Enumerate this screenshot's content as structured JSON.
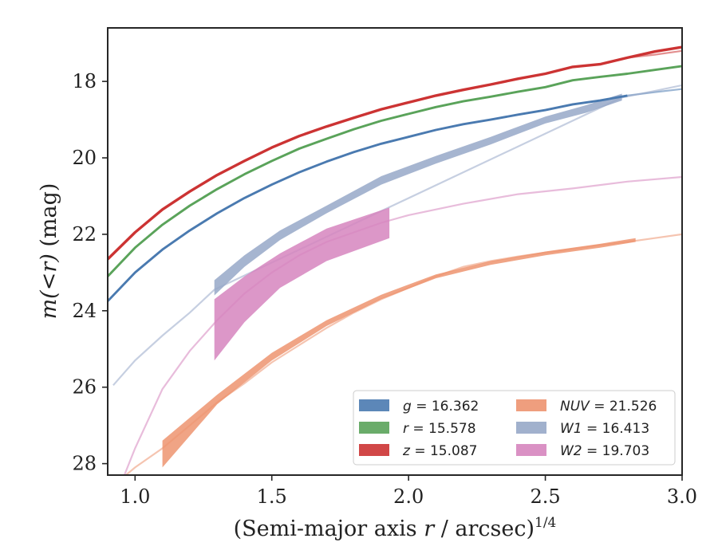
{
  "chart_data": {
    "type": "line",
    "title": "",
    "xlabel": {
      "prefix": "(Semi-major axis ",
      "var": "r",
      "suffix": " / arcsec)",
      "sup": "1/4"
    },
    "ylabel": {
      "prefix": "",
      "var": "m(<r)",
      "suffix": " (mag)"
    },
    "xlim": [
      0.9,
      3.0
    ],
    "ylim": [
      28.3,
      16.6
    ],
    "y_inverted": true,
    "x_ticks": [
      1.0,
      1.5,
      2.0,
      2.5,
      3.0
    ],
    "x_tick_labels": [
      "1.0",
      "1.5",
      "2.0",
      "2.5",
      "3.0"
    ],
    "y_ticks": [
      18,
      20,
      22,
      24,
      26,
      28
    ],
    "y_tick_labels": [
      "18",
      "20",
      "22",
      "24",
      "26",
      "28"
    ],
    "grid": false,
    "legend_placement": "lower-right",
    "series": [
      {
        "name": "g",
        "legend": {
          "var": "g",
          "value": " = 16.362"
        },
        "color": "#4a7ab0",
        "band_width": 0.06,
        "data": [
          [
            0.9,
            23.75
          ],
          [
            1.0,
            23.0
          ],
          [
            1.1,
            22.4
          ],
          [
            1.2,
            21.9
          ],
          [
            1.3,
            21.45
          ],
          [
            1.4,
            21.05
          ],
          [
            1.5,
            20.7
          ],
          [
            1.6,
            20.38
          ],
          [
            1.7,
            20.1
          ],
          [
            1.8,
            19.85
          ],
          [
            1.9,
            19.63
          ],
          [
            2.0,
            19.45
          ],
          [
            2.1,
            19.27
          ],
          [
            2.2,
            19.12
          ],
          [
            2.3,
            19.0
          ],
          [
            2.4,
            18.87
          ],
          [
            2.5,
            18.75
          ],
          [
            2.6,
            18.6
          ],
          [
            2.7,
            18.5
          ],
          [
            2.8,
            18.37
          ]
        ],
        "extrapolated": [
          [
            2.8,
            18.37
          ],
          [
            2.9,
            18.28
          ],
          [
            3.0,
            18.2
          ]
        ]
      },
      {
        "name": "r",
        "legend": {
          "var": "r",
          "value": " = 15.578"
        },
        "color": "#5aa35a",
        "band_width": 0.06,
        "data": [
          [
            0.9,
            23.1
          ],
          [
            1.0,
            22.35
          ],
          [
            1.1,
            21.75
          ],
          [
            1.2,
            21.25
          ],
          [
            1.3,
            20.82
          ],
          [
            1.4,
            20.43
          ],
          [
            1.5,
            20.08
          ],
          [
            1.6,
            19.76
          ],
          [
            1.7,
            19.5
          ],
          [
            1.8,
            19.25
          ],
          [
            1.9,
            19.03
          ],
          [
            2.0,
            18.85
          ],
          [
            2.1,
            18.67
          ],
          [
            2.2,
            18.52
          ],
          [
            2.3,
            18.4
          ],
          [
            2.4,
            18.27
          ],
          [
            2.5,
            18.15
          ],
          [
            2.6,
            17.97
          ],
          [
            2.7,
            17.88
          ],
          [
            2.8,
            17.8
          ],
          [
            2.9,
            17.7
          ],
          [
            3.0,
            17.6
          ]
        ],
        "extrapolated": []
      },
      {
        "name": "z",
        "legend": {
          "var": "z",
          "value": " = 15.087"
        },
        "color": "#cc3333",
        "band_width": 0.07,
        "data": [
          [
            0.9,
            22.65
          ],
          [
            1.0,
            21.95
          ],
          [
            1.1,
            21.35
          ],
          [
            1.2,
            20.88
          ],
          [
            1.3,
            20.45
          ],
          [
            1.4,
            20.08
          ],
          [
            1.5,
            19.73
          ],
          [
            1.6,
            19.43
          ],
          [
            1.7,
            19.18
          ],
          [
            1.8,
            18.95
          ],
          [
            1.9,
            18.73
          ],
          [
            2.0,
            18.55
          ],
          [
            2.1,
            18.37
          ],
          [
            2.2,
            18.22
          ],
          [
            2.3,
            18.08
          ],
          [
            2.4,
            17.93
          ],
          [
            2.5,
            17.8
          ],
          [
            2.6,
            17.62
          ],
          [
            2.7,
            17.55
          ],
          [
            2.8,
            17.38
          ],
          [
            2.9,
            17.22
          ],
          [
            3.0,
            17.1
          ]
        ],
        "extrapolated": [
          [
            2.8,
            17.38
          ],
          [
            2.9,
            17.3
          ],
          [
            3.0,
            17.2
          ]
        ]
      },
      {
        "name": "NUV",
        "legend": {
          "var": "NUV",
          "value": " = 21.526"
        },
        "color": "#ed9470",
        "data_lower": [
          [
            1.1,
            28.1
          ],
          [
            1.3,
            26.45
          ],
          [
            1.5,
            25.3
          ],
          [
            1.7,
            24.4
          ],
          [
            1.9,
            23.7
          ],
          [
            2.1,
            23.15
          ],
          [
            2.3,
            22.8
          ],
          [
            2.5,
            22.55
          ],
          [
            2.7,
            22.35
          ],
          [
            2.83,
            22.2
          ]
        ],
        "data_upper": [
          [
            1.1,
            27.4
          ],
          [
            1.3,
            26.2
          ],
          [
            1.5,
            25.1
          ],
          [
            1.7,
            24.25
          ],
          [
            1.9,
            23.58
          ],
          [
            2.1,
            23.05
          ],
          [
            2.3,
            22.7
          ],
          [
            2.5,
            22.45
          ],
          [
            2.7,
            22.25
          ],
          [
            2.83,
            22.1
          ]
        ],
        "extrapolated": [
          [
            0.95,
            28.4
          ],
          [
            1.0,
            28.1
          ],
          [
            1.1,
            27.6
          ],
          [
            1.2,
            27.0
          ],
          [
            1.3,
            26.4
          ],
          [
            1.4,
            25.9
          ],
          [
            1.5,
            25.35
          ],
          [
            1.6,
            24.9
          ],
          [
            1.7,
            24.45
          ],
          [
            1.8,
            24.05
          ],
          [
            1.9,
            23.7
          ],
          [
            2.0,
            23.4
          ],
          [
            2.1,
            23.1
          ],
          [
            2.2,
            22.85
          ],
          [
            2.3,
            22.7
          ],
          [
            2.4,
            22.58
          ],
          [
            2.5,
            22.48
          ],
          [
            2.6,
            22.38
          ],
          [
            2.7,
            22.28
          ],
          [
            2.8,
            22.2
          ],
          [
            2.9,
            22.1
          ],
          [
            3.0,
            22.0
          ]
        ]
      },
      {
        "name": "W1",
        "legend": {
          "var": "W1",
          "value": " = 16.413"
        },
        "color": "#97a8c8",
        "data_lower": [
          [
            1.29,
            23.6
          ],
          [
            1.4,
            22.85
          ],
          [
            1.53,
            22.15
          ],
          [
            1.7,
            21.45
          ],
          [
            1.9,
            20.7
          ],
          [
            2.1,
            20.15
          ],
          [
            2.3,
            19.65
          ],
          [
            2.5,
            19.1
          ],
          [
            2.65,
            18.82
          ],
          [
            2.78,
            18.5
          ]
        ],
        "data_upper": [
          [
            1.29,
            23.2
          ],
          [
            1.4,
            22.55
          ],
          [
            1.53,
            21.9
          ],
          [
            1.7,
            21.25
          ],
          [
            1.9,
            20.48
          ],
          [
            2.1,
            19.95
          ],
          [
            2.3,
            19.45
          ],
          [
            2.5,
            18.92
          ],
          [
            2.65,
            18.62
          ],
          [
            2.78,
            18.32
          ]
        ],
        "extrapolated": [
          [
            0.92,
            25.95
          ],
          [
            1.0,
            25.3
          ],
          [
            1.1,
            24.65
          ],
          [
            1.2,
            24.05
          ],
          [
            1.29,
            23.45
          ],
          [
            2.78,
            18.42
          ],
          [
            2.9,
            18.25
          ],
          [
            3.0,
            18.1
          ]
        ]
      },
      {
        "name": "W2",
        "legend": {
          "var": "W2",
          "value": " = 19.703"
        },
        "color": "#d685be",
        "data_lower": [
          [
            1.29,
            25.3
          ],
          [
            1.4,
            24.3
          ],
          [
            1.53,
            23.4
          ],
          [
            1.7,
            22.7
          ],
          [
            1.93,
            22.1
          ]
        ],
        "data_upper": [
          [
            1.29,
            23.7
          ],
          [
            1.4,
            23.1
          ],
          [
            1.53,
            22.5
          ],
          [
            1.7,
            21.85
          ],
          [
            1.93,
            21.3
          ]
        ],
        "extrapolated": [
          [
            0.95,
            28.5
          ],
          [
            1.0,
            27.6
          ],
          [
            1.1,
            26.05
          ],
          [
            1.2,
            25.05
          ],
          [
            1.3,
            24.25
          ],
          [
            1.4,
            23.55
          ],
          [
            1.5,
            23.0
          ],
          [
            1.6,
            22.55
          ],
          [
            1.7,
            22.2
          ],
          [
            1.8,
            21.95
          ],
          [
            1.9,
            21.7
          ],
          [
            2.0,
            21.5
          ],
          [
            2.2,
            21.2
          ],
          [
            2.4,
            20.95
          ],
          [
            2.6,
            20.8
          ],
          [
            2.8,
            20.62
          ],
          [
            3.0,
            20.5
          ]
        ]
      }
    ]
  }
}
